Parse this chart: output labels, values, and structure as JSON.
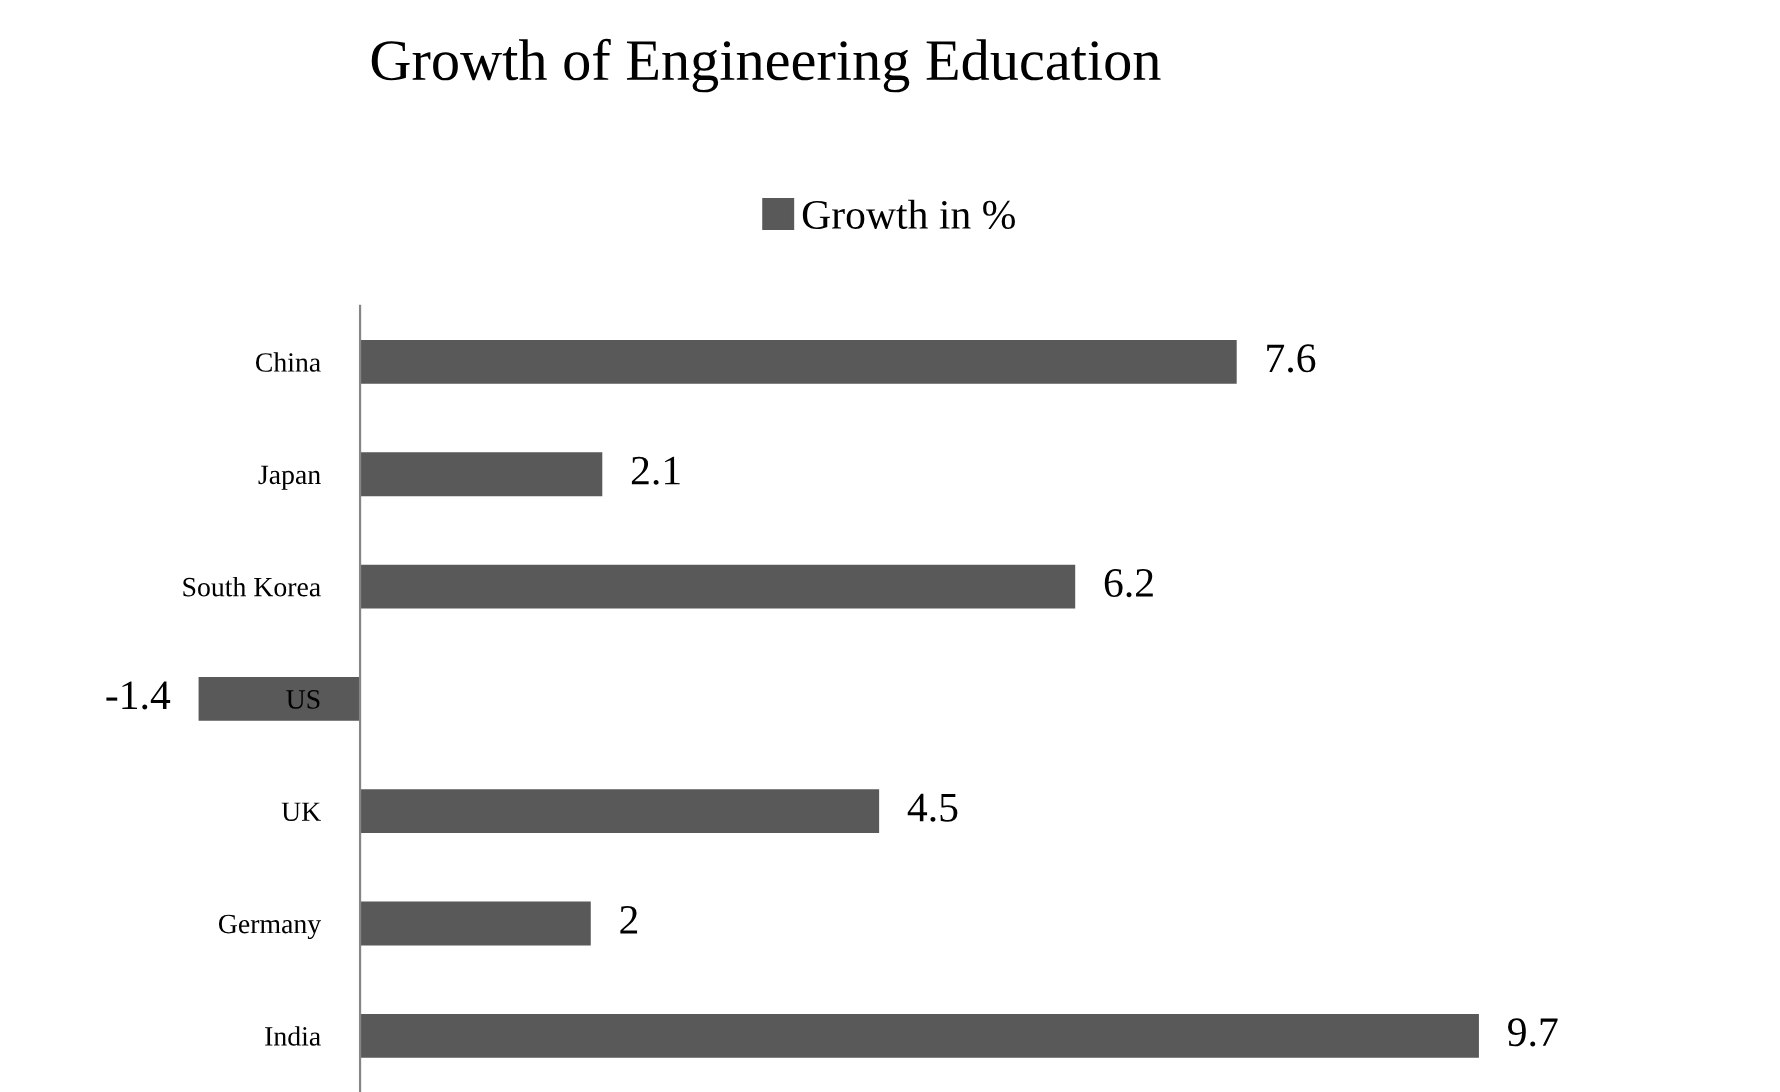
{
  "chart_data": {
    "type": "bar",
    "orientation": "horizontal",
    "title": "Growth of Engineering Education",
    "categories": [
      "China",
      "Japan",
      "South Korea",
      "US",
      "UK",
      "Germany",
      "India"
    ],
    "series": [
      {
        "name": "Growth in %",
        "color": "#595959",
        "values": [
          7.6,
          2.1,
          6.2,
          -1.4,
          4.5,
          2,
          9.7
        ]
      }
    ],
    "data_labels": true,
    "legend": "top",
    "grid": false
  }
}
